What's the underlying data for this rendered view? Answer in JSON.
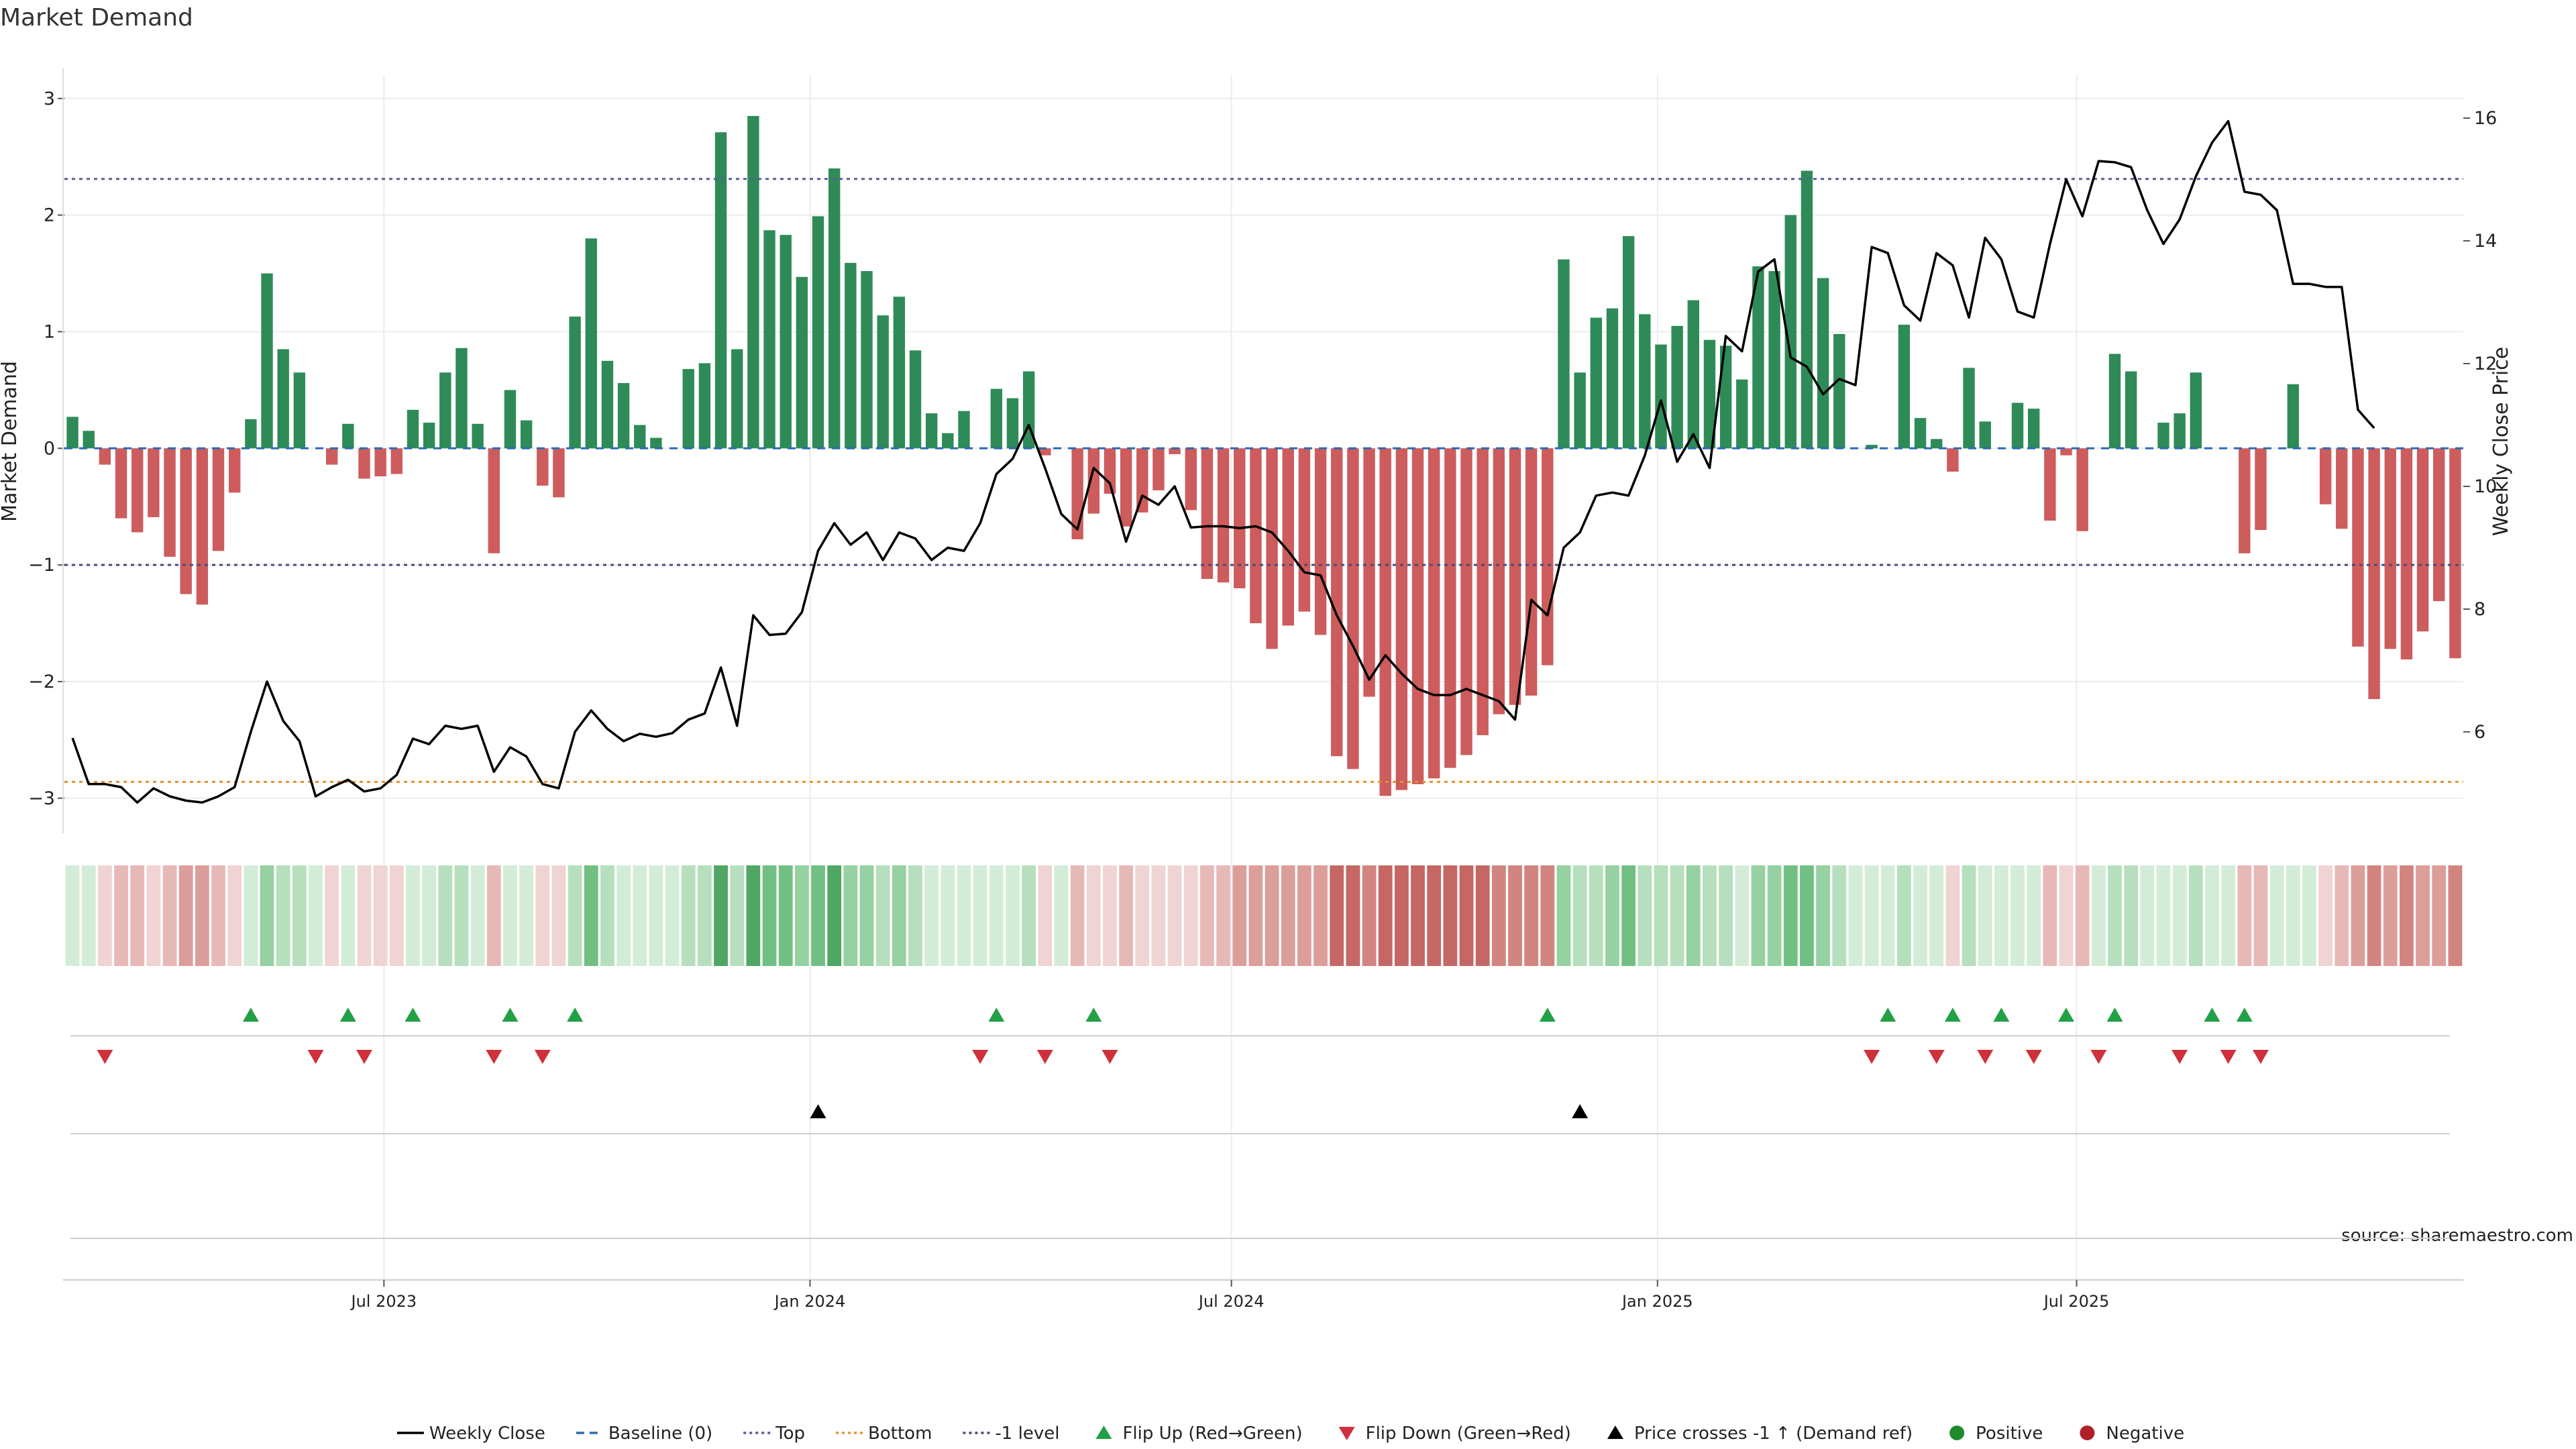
{
  "title": "Market Demand",
  "source": "source: sharemaestro.com",
  "chart_data": {
    "type": "bar",
    "title": "Market Demand",
    "ylabel": "Market Demand",
    "y2label": "Weekly Close Price",
    "ylim": [
      -3.3,
      3.2
    ],
    "y2lim": [
      4.35,
      16.7
    ],
    "yticks": [
      -3,
      -2,
      -1,
      0,
      1,
      2,
      3
    ],
    "y2ticks": [
      6,
      8,
      10,
      12,
      14,
      16
    ],
    "xticks": [
      {
        "label": "Jul 2023",
        "date": "2023-07-01"
      },
      {
        "label": "Jan 2024",
        "date": "2024-01-01"
      },
      {
        "label": "Jul 2024",
        "date": "2024-07-01"
      },
      {
        "label": "Jan 2025",
        "date": "2025-01-01"
      },
      {
        "label": "Jul 2025",
        "date": "2025-07-01"
      }
    ],
    "grid": true,
    "reference_lines": {
      "top": 2.31,
      "bottom": -2.86,
      "minus_one": -1.0,
      "baseline": 0
    },
    "colors": {
      "positive": "#2e8b57",
      "negative": "#cd5c5c",
      "price": "#000000",
      "top": "#5a5aa0",
      "bottom": "#e8912e",
      "minus_one": "#4a4a7a",
      "baseline": "#2b6cb0",
      "flip_up": "#22a045",
      "flip_down": "#d0303a",
      "cross": "#000000",
      "legend_positive": "#1f8a2e",
      "legend_negative": "#b02028"
    },
    "first_week": "2023-02-13",
    "demand": [
      0.27,
      0.15,
      -0.14,
      -0.6,
      -0.72,
      -0.59,
      -0.93,
      -1.25,
      -1.34,
      -0.88,
      -0.38,
      0.25,
      1.5,
      0.85,
      0.65,
      0,
      -0.14,
      0.21,
      -0.26,
      -0.24,
      -0.22,
      0.33,
      0.22,
      0.65,
      0.86,
      0.21,
      -0.9,
      0.5,
      0.24,
      -0.32,
      -0.42,
      1.13,
      1.8,
      0.75,
      0.56,
      0.2,
      0.09,
      0,
      0.68,
      0.73,
      2.71,
      0.85,
      2.85,
      1.87,
      1.83,
      1.47,
      1.99,
      2.4,
      1.59,
      1.52,
      1.14,
      1.3,
      0.84,
      0.3,
      0.13,
      0.32,
      0,
      0.51,
      0.43,
      0.66,
      -0.06,
      0,
      -0.78,
      -0.56,
      -0.39,
      -0.67,
      -0.55,
      -0.36,
      -0.05,
      -0.53,
      -1.12,
      -1.15,
      -1.2,
      -1.5,
      -1.72,
      -1.52,
      -1.4,
      -1.6,
      -2.64,
      -2.75,
      -2.13,
      -2.98,
      -2.93,
      -2.88,
      -2.83,
      -2.74,
      -2.63,
      -2.46,
      -2.28,
      -2.2,
      -2.12,
      -1.86,
      1.62,
      0.65,
      1.12,
      1.2,
      1.82,
      1.15,
      0.89,
      1.05,
      1.27,
      0.93,
      0.88,
      0.59,
      1.56,
      1.52,
      2.0,
      2.38,
      1.46,
      0.98,
      0,
      0.03,
      0,
      1.06,
      0.26,
      0.08,
      -0.2,
      0.69,
      0.23,
      0,
      0.39,
      0.34,
      -0.62,
      -0.06,
      -0.71,
      0,
      0.81,
      0.66,
      0,
      0.22,
      0.3,
      0.65,
      0,
      0,
      -0.9,
      -0.7,
      0,
      0.55,
      0,
      -0.48,
      -0.69,
      -1.7,
      -2.15,
      -1.72,
      -1.81,
      -1.57,
      -1.31,
      -1.8
    ],
    "price": [
      5.9,
      5.15,
      5.15,
      5.1,
      4.85,
      5.08,
      4.95,
      4.88,
      4.85,
      4.95,
      5.1,
      6.0,
      6.82,
      6.18,
      5.85,
      4.95,
      5.1,
      5.22,
      5.03,
      5.08,
      5.3,
      5.89,
      5.8,
      6.1,
      6.05,
      6.1,
      5.35,
      5.75,
      5.6,
      5.15,
      5.08,
      6.0,
      6.35,
      6.05,
      5.85,
      5.97,
      5.92,
      5.98,
      6.2,
      6.3,
      7.05,
      6.1,
      7.9,
      7.58,
      7.6,
      7.95,
      8.95,
      9.4,
      9.05,
      9.25,
      8.8,
      9.25,
      9.15,
      8.8,
      9.0,
      8.95,
      9.4,
      10.2,
      10.45,
      11.0,
      10.3,
      9.55,
      9.3,
      10.3,
      10.05,
      9.1,
      9.85,
      9.7,
      10.0,
      9.33,
      9.35,
      9.35,
      9.32,
      9.35,
      9.25,
      8.95,
      8.6,
      8.55,
      7.9,
      7.4,
      6.85,
      7.25,
      6.95,
      6.7,
      6.6,
      6.6,
      6.7,
      6.6,
      6.5,
      6.2,
      8.15,
      7.9,
      9.0,
      9.25,
      9.85,
      9.9,
      9.85,
      10.5,
      11.4,
      10.4,
      10.85,
      10.3,
      12.45,
      12.2,
      13.5,
      13.7,
      12.1,
      11.95,
      11.5,
      11.75,
      11.65,
      13.9,
      13.8,
      12.95,
      12.7,
      13.8,
      13.6,
      12.75,
      14.05,
      13.7,
      12.85,
      12.75,
      13.95,
      15.0,
      14.4,
      15.3,
      15.28,
      15.2,
      14.5,
      13.95,
      14.35,
      15.05,
      15.6,
      15.95,
      14.8,
      14.75,
      14.5,
      13.3,
      13.3,
      13.25,
      13.25,
      11.25,
      10.95
    ],
    "strip_palette": {
      "positive": [
        "#d3ecd7",
        "#b5dfbd",
        "#95d1a1",
        "#72bf82",
        "#4fa763"
      ],
      "negative": [
        "#f0d3d3",
        "#e6b9b7",
        "#dc9e9b",
        "#d2847f",
        "#c56762"
      ]
    },
    "flip_up_weeks": [
      11,
      17,
      21,
      27,
      31,
      57,
      63,
      91,
      112,
      116,
      119,
      123,
      126,
      132,
      134
    ],
    "flip_down_weeks": [
      2,
      15,
      18,
      26,
      29,
      56,
      60,
      64,
      111,
      115,
      118,
      121,
      125,
      130,
      133,
      135
    ],
    "price_cross_weeks": [
      46,
      93
    ],
    "legend": [
      {
        "label": "Weekly Close",
        "symbol": "line-solid",
        "color": "#000000"
      },
      {
        "label": "Baseline (0)",
        "symbol": "line-dashed",
        "color": "#2b6cb0"
      },
      {
        "label": "Top",
        "symbol": "line-dotted",
        "color": "#5a5aa0"
      },
      {
        "label": "Bottom",
        "symbol": "line-dotted",
        "color": "#e8912e"
      },
      {
        "label": "-1 level",
        "symbol": "line-dotted",
        "color": "#4a4a7a"
      },
      {
        "label": "Flip Up (Red→Green)",
        "symbol": "triangle-up",
        "color": "#22a045"
      },
      {
        "label": "Flip Down (Green→Red)",
        "symbol": "triangle-down",
        "color": "#d0303a"
      },
      {
        "label": "Price crosses -1 ↑ (Demand ref)",
        "symbol": "triangle-up",
        "color": "#000000"
      },
      {
        "label": "Positive",
        "symbol": "circle",
        "color": "#1f8a2e"
      },
      {
        "label": "Negative",
        "symbol": "circle",
        "color": "#b02028"
      }
    ]
  }
}
